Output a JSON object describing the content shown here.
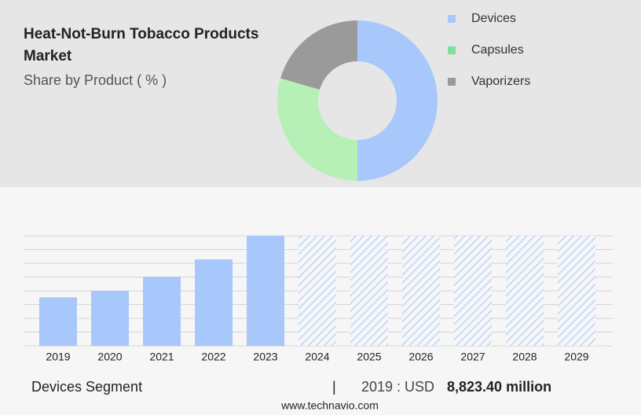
{
  "chart_data": [
    {
      "type": "pie",
      "title": "Heat-Not-Burn Tobacco Products Market",
      "subtitle": "Share by Product ( % )",
      "categories": [
        "Devices",
        "Capsules",
        "Vaporizers"
      ],
      "values": [
        50,
        29.5,
        20.5
      ],
      "colors": [
        "#a8c8fb",
        "#b6f0b6",
        "#9a9a9a"
      ],
      "legend_colors": [
        "#a8c8fb",
        "#7ee09a",
        "#9a9a9a"
      ]
    },
    {
      "type": "bar",
      "categories": [
        "2019",
        "2020",
        "2021",
        "2022",
        "2023",
        "2024",
        "2025",
        "2026",
        "2027",
        "2028",
        "2029"
      ],
      "values": [
        8823.4,
        10000,
        12570,
        15710,
        20000,
        null,
        null,
        null,
        null,
        null,
        null
      ],
      "color": "#a8c8fb",
      "ylim": [
        0,
        20000
      ],
      "yticks": [
        0,
        2500,
        5000,
        7500,
        10000,
        12500,
        15000,
        17500,
        20000
      ],
      "grid": true
    }
  ],
  "footer": {
    "segment": "Devices Segment",
    "separator": "|",
    "year_label": "2019 : USD",
    "value": "8,823.40 million",
    "source": "www.technavio.com"
  }
}
